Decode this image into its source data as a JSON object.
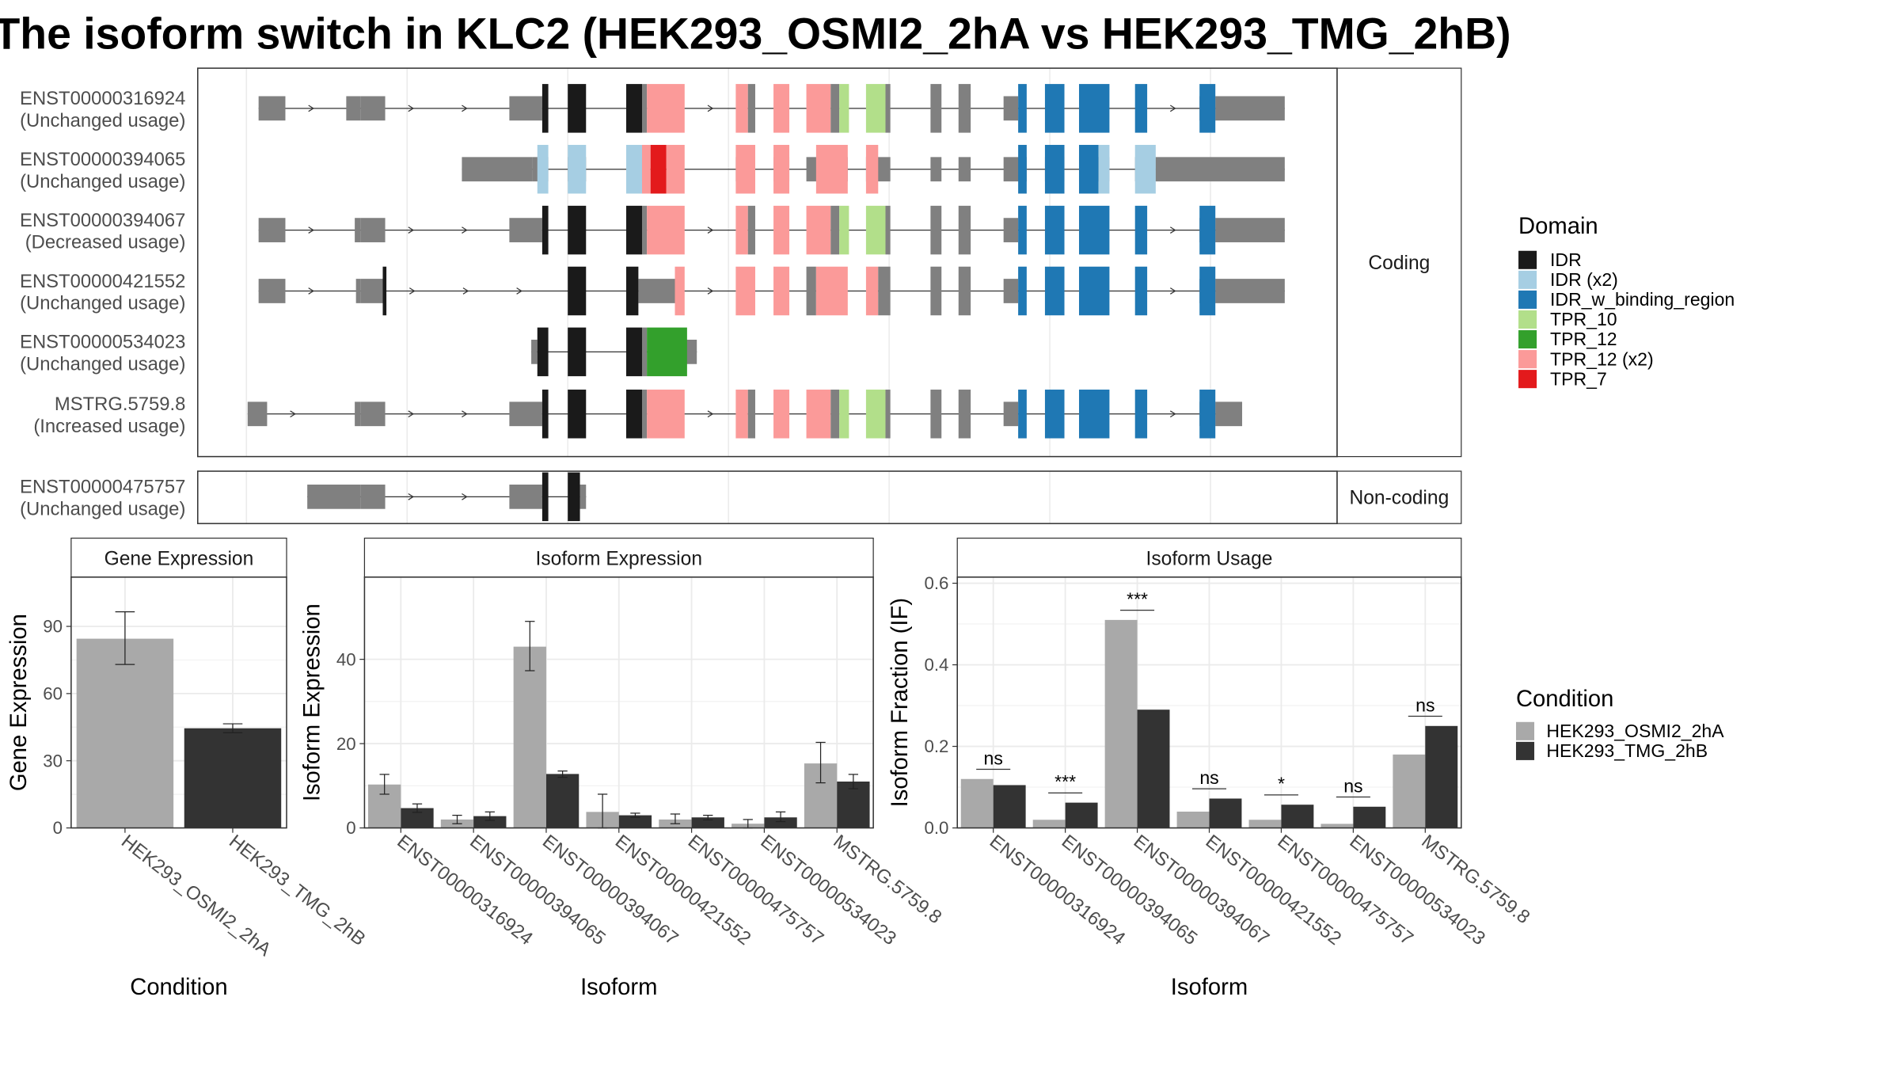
{
  "title": "The isoform switch in KLC2 (HEK293_OSMI2_2hA vs HEK293_TMG_2hB)",
  "colors": {
    "cond_a": "#a9a9a9",
    "cond_b": "#333333",
    "utr": "#808080",
    "IDR": "#1a1a1a",
    "IDR (x2)": "#a6cee3",
    "IDR_w_binding_region": "#1f78b4",
    "TPR_10": "#b2df8a",
    "TPR_12": "#33a02c",
    "TPR_12 (x2)": "#fb9a99",
    "TPR_7": "#e31a1c"
  },
  "structure": {
    "coding_label": "Coding",
    "noncoding_label": "Non-coding",
    "transcripts": [
      {
        "id": "ENST00000316924",
        "usage": "(Unchanged usage)",
        "group": "coding",
        "strand": "+",
        "utr": [
          [
            212,
            234
          ],
          [
            284,
            296
          ],
          [
            296,
            316
          ],
          [
            418,
            445
          ],
          [
            824,
            836
          ],
          [
            985,
            998
          ],
          [
            998,
            1055
          ]
        ],
        "cds": [
          [
            445,
            450,
            "IDR"
          ],
          [
            466,
            481,
            "IDR"
          ],
          [
            514,
            527,
            "IDR"
          ],
          [
            527,
            531,
            "utr"
          ],
          [
            531,
            562,
            "TPR_12 (x2)"
          ],
          [
            604,
            614,
            "TPR_12 (x2)"
          ],
          [
            614,
            620,
            "utr"
          ],
          [
            635,
            648,
            "TPR_12 (x2)"
          ],
          [
            662,
            682,
            "TPR_12 (x2)"
          ],
          [
            682,
            689,
            "utr"
          ],
          [
            689,
            697,
            "TPR_10"
          ],
          [
            711,
            727,
            "TPR_10"
          ],
          [
            727,
            731,
            "utr"
          ],
          [
            764,
            773,
            "utr"
          ],
          [
            787,
            797,
            "utr"
          ],
          [
            836,
            843,
            "IDR_w_binding_region"
          ],
          [
            858,
            874,
            "IDR_w_binding_region"
          ],
          [
            886,
            911,
            "IDR_w_binding_region"
          ],
          [
            932,
            942,
            "IDR_w_binding_region"
          ],
          [
            985,
            998,
            "IDR_w_binding_region"
          ]
        ]
      },
      {
        "id": "ENST00000394065",
        "usage": "(Unchanged usage)",
        "group": "coding",
        "strand": "none",
        "utr": [
          [
            379,
            437
          ],
          [
            437,
            450
          ],
          [
            466,
            481
          ],
          [
            514,
            530
          ],
          [
            604,
            620
          ],
          [
            635,
            648
          ],
          [
            662,
            696
          ],
          [
            711,
            731
          ],
          [
            764,
            773
          ],
          [
            787,
            797
          ],
          [
            824,
            843
          ],
          [
            858,
            874
          ],
          [
            886,
            911
          ],
          [
            932,
            949
          ],
          [
            949,
            966
          ],
          [
            966,
            1055
          ]
        ],
        "cds": [
          [
            441,
            450,
            "IDR (x2)"
          ],
          [
            466,
            481,
            "IDR (x2)"
          ],
          [
            514,
            527,
            "IDR (x2)"
          ],
          [
            527,
            534,
            "TPR_12 (x2)"
          ],
          [
            534,
            547,
            "TPR_7"
          ],
          [
            547,
            562,
            "TPR_12 (x2)"
          ],
          [
            604,
            620,
            "TPR_12 (x2)"
          ],
          [
            635,
            648,
            "TPR_12 (x2)"
          ],
          [
            670,
            696,
            "TPR_12 (x2)"
          ],
          [
            711,
            721,
            "TPR_12 (x2)"
          ],
          [
            836,
            843,
            "IDR_w_binding_region"
          ],
          [
            858,
            874,
            "IDR_w_binding_region"
          ],
          [
            886,
            902,
            "IDR_w_binding_region"
          ],
          [
            902,
            911,
            "IDR (x2)"
          ],
          [
            932,
            949,
            "IDR (x2)"
          ]
        ]
      },
      {
        "id": "ENST00000394067",
        "usage": "(Decreased usage)",
        "group": "coding",
        "strand": "+",
        "utr": [
          [
            212,
            234
          ],
          [
            291,
            296
          ],
          [
            296,
            316
          ],
          [
            418,
            445
          ],
          [
            824,
            836
          ],
          [
            985,
            998
          ],
          [
            998,
            1055
          ]
        ],
        "cds": [
          [
            445,
            450,
            "IDR"
          ],
          [
            466,
            481,
            "IDR"
          ],
          [
            514,
            527,
            "IDR"
          ],
          [
            527,
            531,
            "utr"
          ],
          [
            531,
            562,
            "TPR_12 (x2)"
          ],
          [
            604,
            614,
            "TPR_12 (x2)"
          ],
          [
            614,
            620,
            "utr"
          ],
          [
            635,
            648,
            "TPR_12 (x2)"
          ],
          [
            662,
            682,
            "TPR_12 (x2)"
          ],
          [
            682,
            689,
            "utr"
          ],
          [
            689,
            697,
            "TPR_10"
          ],
          [
            711,
            727,
            "TPR_10"
          ],
          [
            727,
            731,
            "utr"
          ],
          [
            764,
            773,
            "utr"
          ],
          [
            787,
            797,
            "utr"
          ],
          [
            836,
            843,
            "IDR_w_binding_region"
          ],
          [
            858,
            874,
            "IDR_w_binding_region"
          ],
          [
            886,
            911,
            "IDR_w_binding_region"
          ],
          [
            932,
            942,
            "IDR_w_binding_region"
          ],
          [
            985,
            998,
            "IDR_w_binding_region"
          ]
        ]
      },
      {
        "id": "ENST00000421552",
        "usage": "(Unchanged usage)",
        "group": "coding",
        "strand": "+",
        "utr": [
          [
            212,
            234
          ],
          [
            292,
            296
          ],
          [
            296,
            316
          ],
          [
            524,
            554
          ],
          [
            824,
            836
          ],
          [
            985,
            998
          ],
          [
            998,
            1055
          ]
        ],
        "cds": [
          [
            314,
            317,
            "IDR"
          ],
          [
            466,
            481,
            "IDR"
          ],
          [
            514,
            524,
            "IDR"
          ],
          [
            554,
            562,
            "TPR_12 (x2)"
          ],
          [
            604,
            620,
            "TPR_12 (x2)"
          ],
          [
            635,
            648,
            "TPR_12 (x2)"
          ],
          [
            662,
            670,
            "utr"
          ],
          [
            670,
            696,
            "TPR_12 (x2)"
          ],
          [
            711,
            721,
            "TPR_12 (x2)"
          ],
          [
            721,
            731,
            "utr"
          ],
          [
            764,
            773,
            "utr"
          ],
          [
            787,
            797,
            "utr"
          ],
          [
            836,
            843,
            "IDR_w_binding_region"
          ],
          [
            858,
            874,
            "IDR_w_binding_region"
          ],
          [
            886,
            911,
            "IDR_w_binding_region"
          ],
          [
            932,
            942,
            "IDR_w_binding_region"
          ],
          [
            985,
            998,
            "IDR_w_binding_region"
          ]
        ]
      },
      {
        "id": "ENST00000534023",
        "usage": "(Unchanged usage)",
        "group": "coding",
        "strand": "none",
        "utr": [
          [
            436,
            441
          ],
          [
            562,
            572
          ]
        ],
        "cds": [
          [
            441,
            450,
            "IDR"
          ],
          [
            466,
            481,
            "IDR"
          ],
          [
            514,
            527,
            "IDR"
          ],
          [
            527,
            531,
            "utr"
          ],
          [
            531,
            564,
            "TPR_12"
          ]
        ]
      },
      {
        "id": "MSTRG.5759.8",
        "usage": "(Increased usage)",
        "group": "coding",
        "strand": "+",
        "utr": [
          [
            203,
            219
          ],
          [
            291,
            296
          ],
          [
            296,
            316
          ],
          [
            418,
            445
          ],
          [
            824,
            836
          ],
          [
            985,
            998
          ],
          [
            998,
            1020
          ]
        ],
        "cds": [
          [
            445,
            450,
            "IDR"
          ],
          [
            466,
            481,
            "IDR"
          ],
          [
            514,
            527,
            "IDR"
          ],
          [
            527,
            531,
            "utr"
          ],
          [
            531,
            562,
            "TPR_12 (x2)"
          ],
          [
            604,
            614,
            "TPR_12 (x2)"
          ],
          [
            614,
            620,
            "utr"
          ],
          [
            635,
            648,
            "TPR_12 (x2)"
          ],
          [
            662,
            682,
            "TPR_12 (x2)"
          ],
          [
            682,
            689,
            "utr"
          ],
          [
            689,
            697,
            "TPR_10"
          ],
          [
            711,
            727,
            "TPR_10"
          ],
          [
            727,
            731,
            "utr"
          ],
          [
            764,
            773,
            "utr"
          ],
          [
            787,
            797,
            "utr"
          ],
          [
            836,
            843,
            "IDR_w_binding_region"
          ],
          [
            858,
            874,
            "IDR_w_binding_region"
          ],
          [
            886,
            911,
            "IDR_w_binding_region"
          ],
          [
            932,
            942,
            "IDR_w_binding_region"
          ],
          [
            985,
            998,
            "IDR_w_binding_region"
          ]
        ]
      },
      {
        "id": "ENST00000475757",
        "usage": "(Unchanged usage)",
        "group": "noncoding",
        "strand": "+",
        "utr": [
          [
            252,
            296
          ],
          [
            296,
            316
          ],
          [
            418,
            445
          ],
          [
            476,
            481
          ]
        ],
        "cds": [
          [
            445,
            450,
            "IDR"
          ],
          [
            466,
            476,
            "IDR"
          ]
        ]
      }
    ]
  },
  "domain_legend": {
    "title": "Domain",
    "items": [
      "IDR",
      "IDR (x2)",
      "IDR_w_binding_region",
      "TPR_10",
      "TPR_12",
      "TPR_12 (x2)",
      "TPR_7"
    ]
  },
  "condition_legend": {
    "title": "Condition",
    "items": [
      "HEK293_OSMI2_2hA",
      "HEK293_TMG_2hB"
    ]
  },
  "chart_data": [
    {
      "type": "bar",
      "title": "Gene Expression",
      "xlabel": "Condition",
      "ylabel": "Gene Expression",
      "categories": [
        "HEK293_OSMI2_2hA",
        "HEK293_TMG_2hB"
      ],
      "values": [
        84.5,
        44.5
      ],
      "error_low": [
        73,
        42.5
      ],
      "error_high": [
        96.5,
        46.5
      ],
      "ylim": [
        0,
        112
      ],
      "yticks": [
        0,
        30,
        60,
        90
      ],
      "grid": true
    },
    {
      "type": "bar",
      "title": "Isoform Expression",
      "xlabel": "Isoform",
      "ylabel": "Isoform Expression",
      "categories": [
        "ENST00000316924",
        "ENST00000394065",
        "ENST00000394067",
        "ENST00000421552",
        "ENST00000475757",
        "ENST00000534023",
        "MSTRG.5759.8"
      ],
      "series": [
        {
          "name": "HEK293_OSMI2_2hA",
          "values": [
            10.3,
            2.0,
            43.0,
            3.8,
            2.0,
            1.0,
            15.3
          ],
          "error_low": [
            8.0,
            1.0,
            37.3,
            0.0,
            1.0,
            0.0,
            10.7
          ],
          "error_high": [
            12.7,
            3.0,
            49.0,
            8.0,
            3.3,
            2.0,
            20.3
          ]
        },
        {
          "name": "HEK293_TMG_2hB",
          "values": [
            4.7,
            2.8,
            12.8,
            3.0,
            2.5,
            2.5,
            11.0
          ],
          "error_low": [
            3.7,
            1.8,
            12.0,
            2.5,
            1.9,
            1.5,
            9.3
          ],
          "error_high": [
            5.7,
            3.8,
            13.5,
            3.5,
            3.0,
            3.8,
            12.7
          ]
        }
      ],
      "ylim": [
        0,
        59.5
      ],
      "yticks": [
        0,
        20,
        40
      ],
      "grid": true
    },
    {
      "type": "bar",
      "title": "Isoform Usage",
      "xlabel": "Isoform",
      "ylabel": "Isoform Fraction (IF)",
      "categories": [
        "ENST00000316924",
        "ENST00000394065",
        "ENST00000394067",
        "ENST00000421552",
        "ENST00000475757",
        "ENST00000534023",
        "MSTRG.5759.8"
      ],
      "series": [
        {
          "name": "HEK293_OSMI2_2hA",
          "values": [
            0.12,
            0.02,
            0.51,
            0.04,
            0.02,
            0.01,
            0.18
          ]
        },
        {
          "name": "HEK293_TMG_2hB",
          "values": [
            0.105,
            0.062,
            0.29,
            0.072,
            0.057,
            0.052,
            0.25
          ]
        }
      ],
      "significance": [
        "ns",
        "***",
        "***",
        "ns",
        "*",
        "ns",
        "ns"
      ],
      "ylim": [
        0,
        0.615
      ],
      "yticks": [
        0.0,
        0.2,
        0.4,
        0.6
      ],
      "grid": true
    }
  ]
}
